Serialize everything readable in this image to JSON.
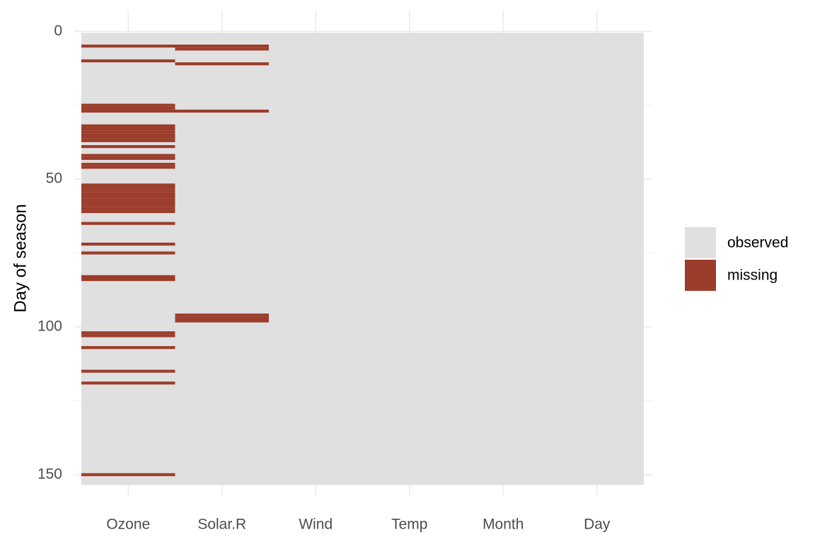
{
  "chart_data": {
    "type": "missingness",
    "y_label": "Day of season",
    "categories": [
      "Ozone",
      "Solar.R",
      "Wind",
      "Temp",
      "Month",
      "Day"
    ],
    "rows": 153,
    "missing": [
      [
        5,
        10,
        25,
        26,
        27,
        32,
        33,
        34,
        35,
        36,
        37,
        39,
        42,
        43,
        45,
        46,
        52,
        53,
        54,
        55,
        56,
        57,
        58,
        59,
        60,
        61,
        65,
        72,
        75,
        83,
        84,
        102,
        103,
        107,
        115,
        119,
        150
      ],
      [
        5,
        6,
        11,
        27,
        96,
        97,
        98
      ],
      [],
      [],
      [],
      []
    ],
    "ylim": [
      -7,
      157
    ],
    "yticks": [
      0,
      50,
      100,
      150
    ],
    "y_reversed": true,
    "grid": true,
    "legend": {
      "position": "right",
      "entries": [
        {
          "name": "observed",
          "color": "#e0e0e0"
        },
        {
          "name": "missing",
          "color": "#9c3d2b"
        }
      ]
    }
  }
}
